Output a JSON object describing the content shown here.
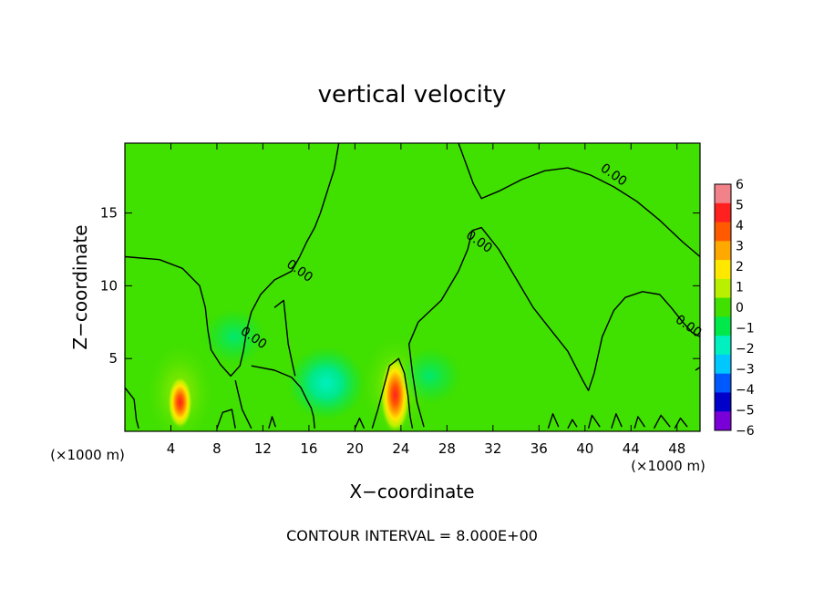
{
  "chart_data": {
    "type": "heatmap",
    "title": "vertical velocity",
    "xlabel": "X−coordinate",
    "ylabel": "Z−coordinate",
    "x_unit": "(×1000 m)",
    "y_unit": "(×1000 m)",
    "footer": "CONTOUR INTERVAL = 8.000E+00",
    "xlim": [
      0,
      50
    ],
    "ylim": [
      0,
      19.8
    ],
    "x_ticks": [
      4,
      8,
      12,
      16,
      20,
      24,
      28,
      32,
      36,
      40,
      44,
      48
    ],
    "y_ticks": [
      5,
      10,
      15
    ],
    "contour_label": "0.00",
    "colorbar": {
      "ticks": [
        "6",
        "5",
        "4",
        "3",
        "2",
        "1",
        "0",
        "−1",
        "−2",
        "−3",
        "−4",
        "−5",
        "−6"
      ],
      "colors": [
        "#f2828a",
        "#ff2020",
        "#ff5a00",
        "#ffa800",
        "#ffe800",
        "#b8f000",
        "#40e000",
        "#00e84a",
        "#00f0c0",
        "#00c8ff",
        "#0058ff",
        "#0000c8",
        "#7a00d8"
      ]
    },
    "features": [
      {
        "name": "updraft",
        "x": 4.8,
        "z": 2.0,
        "value": 4
      },
      {
        "name": "updraft",
        "x": 23.5,
        "z": 2.5,
        "value": 5
      },
      {
        "name": "downdraft",
        "x": 17.5,
        "z": 3.3,
        "value": -2
      },
      {
        "name": "downdraft",
        "x": 26.5,
        "z": 3.8,
        "value": -1
      },
      {
        "name": "downdraft",
        "x": 9.5,
        "z": 6.5,
        "value": -1
      }
    ],
    "zero_contours": [
      [
        [
          0,
          12.0
        ],
        [
          3,
          11.8
        ],
        [
          5,
          11.2
        ],
        [
          6.5,
          10.0
        ],
        [
          7,
          8.5
        ],
        [
          7.2,
          7.0
        ],
        [
          7.5,
          5.6
        ],
        [
          8.3,
          4.6
        ],
        [
          9.2,
          3.8
        ],
        [
          10,
          4.5
        ],
        [
          10.3,
          5.5
        ],
        [
          10.6,
          7.0
        ],
        [
          11.0,
          8.2
        ],
        [
          11.8,
          9.4
        ],
        [
          13.0,
          10.4
        ],
        [
          14.5,
          11.0
        ],
        [
          15.2,
          12.0
        ],
        [
          15.8,
          13.0
        ],
        [
          16.5,
          14.0
        ],
        [
          17.0,
          15.0
        ],
        [
          17.4,
          16.0
        ],
        [
          17.8,
          17.0
        ],
        [
          18.2,
          18.0
        ],
        [
          18.6,
          19.8
        ]
      ],
      [
        [
          26.0,
          0.3
        ],
        [
          25.4,
          2.0
        ],
        [
          25.0,
          4.0
        ],
        [
          24.7,
          6.0
        ],
        [
          25.5,
          7.5
        ],
        [
          27.5,
          9.0
        ],
        [
          29.0,
          11.0
        ],
        [
          29.8,
          12.5
        ],
        [
          30.2,
          13.8
        ],
        [
          31.0,
          14.0
        ],
        [
          32.5,
          12.5
        ],
        [
          34.0,
          10.5
        ],
        [
          35.5,
          8.5
        ],
        [
          37.0,
          7.0
        ],
        [
          38.5,
          5.5
        ],
        [
          39.8,
          3.5
        ],
        [
          40.3,
          2.8
        ],
        [
          40.8,
          4.0
        ],
        [
          41.5,
          6.5
        ],
        [
          42.5,
          8.3
        ],
        [
          43.5,
          9.2
        ],
        [
          45,
          9.6
        ],
        [
          46.5,
          9.4
        ],
        [
          47.5,
          8.5
        ],
        [
          48.5,
          7.5
        ],
        [
          49.3,
          6.8
        ],
        [
          50,
          6.5
        ]
      ],
      [
        [
          29.0,
          19.8
        ],
        [
          29.6,
          18.5
        ],
        [
          30.3,
          17.0
        ],
        [
          31.0,
          16.0
        ],
        [
          32.5,
          16.5
        ],
        [
          34.5,
          17.3
        ],
        [
          36.5,
          17.9
        ],
        [
          38.5,
          18.1
        ],
        [
          40.5,
          17.6
        ],
        [
          42.5,
          16.8
        ],
        [
          44.5,
          15.8
        ],
        [
          46.5,
          14.5
        ],
        [
          48.5,
          13.0
        ],
        [
          50,
          12.0
        ]
      ],
      [
        [
          11.0,
          4.5
        ],
        [
          13.0,
          4.2
        ],
        [
          14.5,
          3.7
        ],
        [
          15.3,
          3.0
        ],
        [
          15.8,
          2.2
        ],
        [
          16.2,
          1.6
        ],
        [
          16.4,
          1.0
        ],
        [
          16.5,
          0.2
        ]
      ],
      [
        [
          11.0,
          0.2
        ],
        [
          10.2,
          1.5
        ],
        [
          9.8,
          2.8
        ],
        [
          9.6,
          3.5
        ]
      ],
      [
        [
          21.5,
          0.2
        ],
        [
          22.0,
          1.5
        ],
        [
          22.5,
          3.0
        ],
        [
          23.0,
          4.5
        ],
        [
          23.8,
          5.0
        ],
        [
          24.3,
          4.0
        ],
        [
          24.6,
          2.5
        ],
        [
          24.8,
          1.0
        ],
        [
          25.0,
          0.2
        ]
      ],
      [
        [
          13.0,
          8.5
        ],
        [
          13.8,
          9.0
        ],
        [
          14.0,
          7.5
        ],
        [
          14.2,
          6.0
        ],
        [
          14.6,
          4.5
        ],
        [
          14.8,
          3.8
        ]
      ],
      [
        [
          40.3,
          0.2
        ],
        [
          40.6,
          1.1
        ],
        [
          41.3,
          0.3
        ]
      ],
      [
        [
          42.3,
          0.2
        ],
        [
          42.7,
          1.2
        ],
        [
          43.2,
          0.3
        ]
      ],
      [
        [
          44.3,
          0.2
        ],
        [
          44.6,
          1.0
        ],
        [
          45.2,
          0.3
        ]
      ],
      [
        [
          46.0,
          0.2
        ],
        [
          46.6,
          1.1
        ],
        [
          47.4,
          0.3
        ]
      ],
      [
        [
          47.8,
          0.2
        ],
        [
          48.3,
          0.9
        ],
        [
          48.9,
          0.3
        ]
      ],
      [
        [
          36.8,
          0.2
        ],
        [
          37.2,
          1.2
        ],
        [
          37.7,
          0.3
        ]
      ],
      [
        [
          38.5,
          0.2
        ],
        [
          38.9,
          0.8
        ],
        [
          39.3,
          0.3
        ]
      ],
      [
        [
          12.5,
          0.2
        ],
        [
          12.8,
          1.0
        ],
        [
          13.1,
          0.3
        ]
      ],
      [
        [
          8.0,
          0.2
        ],
        [
          8.5,
          1.3
        ],
        [
          9.3,
          1.5
        ],
        [
          9.6,
          0.2
        ]
      ],
      [
        [
          20.0,
          0.2
        ],
        [
          20.4,
          0.9
        ],
        [
          20.8,
          0.2
        ]
      ],
      [
        [
          0,
          3.0
        ],
        [
          0.8,
          2.2
        ],
        [
          1.0,
          0.8
        ],
        [
          1.2,
          0.2
        ]
      ],
      [
        [
          49.6,
          4.2
        ],
        [
          50,
          4.4
        ]
      ]
    ],
    "contour_label_positions": [
      [
        15.0,
        10.8
      ],
      [
        11.0,
        6.2
      ],
      [
        30.6,
        12.8
      ],
      [
        42.3,
        17.4
      ],
      [
        48.8,
        7.0
      ]
    ]
  }
}
